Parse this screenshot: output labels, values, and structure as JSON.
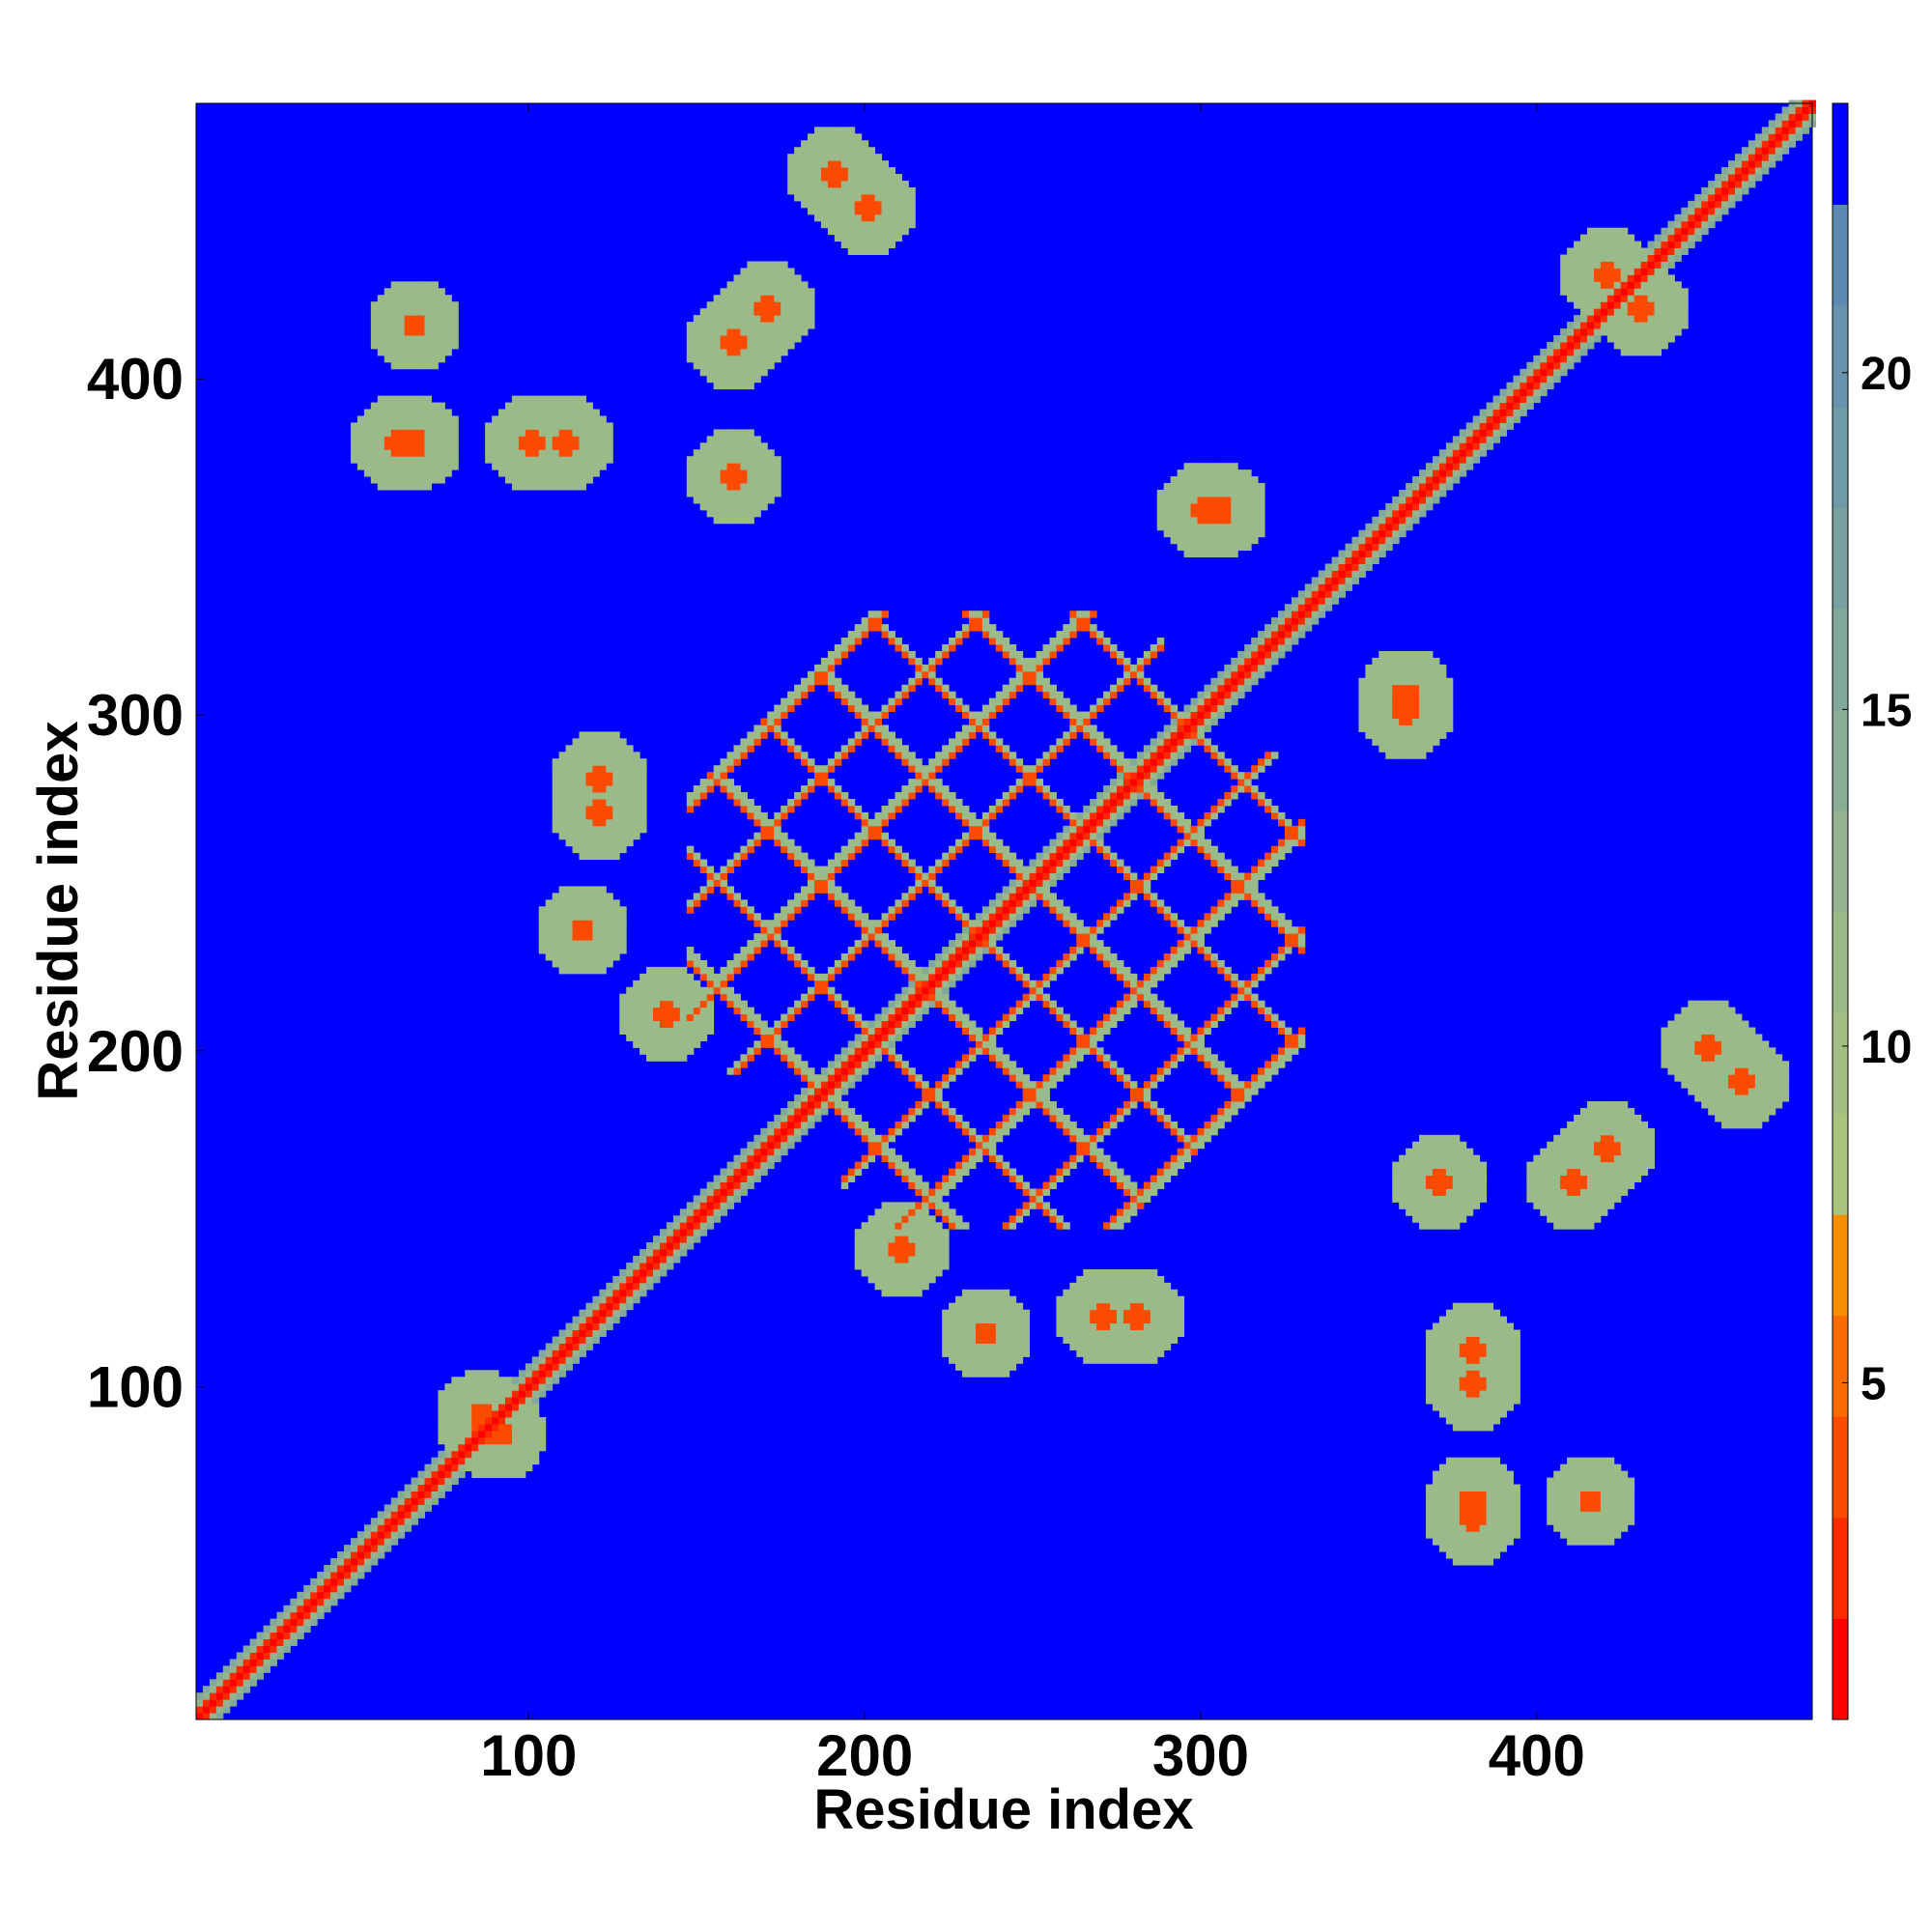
{
  "chart_data": {
    "type": "heatmap",
    "title": "",
    "xlabel": "Residue index",
    "ylabel": "Residue index",
    "xlim": [
      1,
      482
    ],
    "ylim": [
      1,
      482
    ],
    "x_ticks": [
      100,
      200,
      300,
      400
    ],
    "y_ticks": [
      100,
      200,
      300,
      400
    ],
    "colorbar": {
      "range": [
        0,
        24
      ],
      "ticks": [
        5,
        10,
        15,
        20
      ],
      "levels": [
        {
          "max": 1.5,
          "color": "#ff0000"
        },
        {
          "max": 3.0,
          "color": "#fd2a00"
        },
        {
          "max": 4.5,
          "color": "#fb4b00"
        },
        {
          "max": 6.0,
          "color": "#f96a00"
        },
        {
          "max": 7.5,
          "color": "#f78e00"
        },
        {
          "max": 9.0,
          "color": "#a9c57d"
        },
        {
          "max": 10.5,
          "color": "#a2c083"
        },
        {
          "max": 12.0,
          "color": "#9bba89"
        },
        {
          "max": 13.5,
          "color": "#93b48f"
        },
        {
          "max": 15.0,
          "color": "#8aae95"
        },
        {
          "max": 16.5,
          "color": "#82a89b"
        },
        {
          "max": 18.0,
          "color": "#79a1a1"
        },
        {
          "max": 19.5,
          "color": "#6f9aa7"
        },
        {
          "max": 21.0,
          "color": "#6892ad"
        },
        {
          "max": 22.5,
          "color": "#5d8ab2"
        },
        {
          "max": 24.0,
          "color": "#0000ff"
        }
      ]
    },
    "background_color": "#0000ff",
    "diagonal_color": "#ff0000",
    "features": [
      {
        "kind": "diagonal_band",
        "from": 1,
        "to": 482
      },
      {
        "kind": "parallel_band",
        "from": 150,
        "to": 330,
        "offset": 12
      },
      {
        "kind": "cross_grid",
        "center": [
          240,
          240
        ],
        "strands": [
          155,
          175,
          190,
          210,
          225,
          245,
          260,
          280,
          295,
          310
        ]
      },
      {
        "kind": "contact_patch",
        "x": 120,
        "y": 270,
        "value": 11
      },
      {
        "kind": "contact_patch",
        "x": 140,
        "y": 210,
        "value": 11
      },
      {
        "kind": "contact_patch",
        "x": 235,
        "y": 115,
        "value": 11
      },
      {
        "kind": "contact_patch",
        "x": 280,
        "y": 120,
        "value": 11
      },
      {
        "kind": "contact_patch",
        "x": 370,
        "y": 160,
        "value": 11
      },
      {
        "kind": "contact_patch",
        "x": 420,
        "y": 170,
        "value": 11
      },
      {
        "kind": "contact_patch",
        "x": 380,
        "y": 100,
        "value": 11
      },
      {
        "kind": "contact_patch",
        "x": 380,
        "y": 65,
        "value": 11
      },
      {
        "kind": "contact_patch",
        "x": 415,
        "y": 65,
        "value": 11
      },
      {
        "kind": "contact_patch",
        "x": 360,
        "y": 305,
        "value": 11
      },
      {
        "kind": "contact_patch",
        "x": 60,
        "y": 380,
        "value": 11
      },
      {
        "kind": "contact_patch",
        "x": 110,
        "y": 380,
        "value": 11
      },
      {
        "kind": "contact_patch",
        "x": 160,
        "y": 410,
        "value": 11
      },
      {
        "kind": "contact_patch",
        "x": 200,
        "y": 450,
        "value": 11
      },
      {
        "kind": "contact_patch",
        "x": 300,
        "y": 360,
        "value": 11
      },
      {
        "kind": "contact_patch",
        "x": 430,
        "y": 420,
        "value": 11
      },
      {
        "kind": "contact_patch",
        "x": 460,
        "y": 190,
        "value": 11
      },
      {
        "kind": "contact_patch",
        "x": 85,
        "y": 90,
        "value": 11
      }
    ]
  }
}
